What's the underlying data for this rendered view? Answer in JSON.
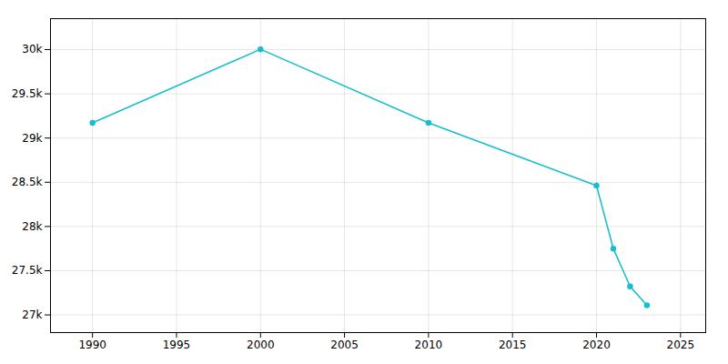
{
  "chart_data": {
    "type": "line",
    "x": [
      1990,
      2000,
      2010,
      2020,
      2021,
      2022,
      2023
    ],
    "values": [
      29172,
      30004,
      29172,
      28463,
      27750,
      27322,
      27108
    ],
    "color": "#17becf",
    "marker": "circle",
    "xlim": [
      1987.5,
      2026.5
    ],
    "xticks": [
      1990,
      1995,
      2000,
      2005,
      2010,
      2015,
      2020,
      2025
    ],
    "ylim": [
      26800,
      30350
    ],
    "yticks": [
      {
        "value": 27000,
        "label": "27k"
      },
      {
        "value": 27500,
        "label": "27.5k"
      },
      {
        "value": 28000,
        "label": "28k"
      },
      {
        "value": 28500,
        "label": "28.5k"
      },
      {
        "value": 29000,
        "label": "29k"
      },
      {
        "value": 29500,
        "label": "29.5k"
      },
      {
        "value": 30000,
        "label": "30k"
      }
    ],
    "grid": true
  }
}
